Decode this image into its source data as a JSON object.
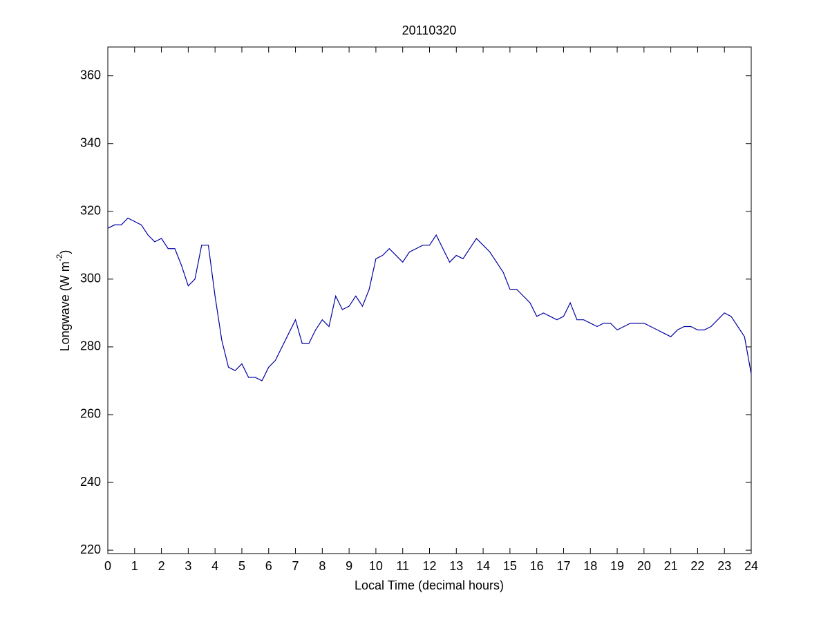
{
  "chart_data": {
    "type": "line",
    "title": "20110320",
    "x_label": "Local Time (decimal hours)",
    "y_label": {
      "text": "Longwave (W m",
      "superscript": "-2",
      "suffix": ")"
    },
    "x": [
      0,
      0.25,
      0.5,
      0.75,
      1,
      1.25,
      1.5,
      1.75,
      2,
      2.25,
      2.5,
      2.75,
      3,
      3.25,
      3.5,
      3.75,
      4,
      4.25,
      4.5,
      4.75,
      5,
      5.25,
      5.5,
      5.75,
      6,
      6.25,
      6.5,
      6.75,
      7,
      7.25,
      7.5,
      7.75,
      8,
      8.25,
      8.5,
      8.75,
      9,
      9.25,
      9.5,
      9.75,
      10,
      10.25,
      10.5,
      10.75,
      11,
      11.25,
      11.5,
      11.75,
      12,
      12.25,
      12.5,
      12.75,
      13,
      13.25,
      13.5,
      13.75,
      14,
      14.25,
      14.5,
      14.75,
      15,
      15.25,
      15.5,
      15.75,
      16,
      16.25,
      16.5,
      16.75,
      17,
      17.25,
      17.5,
      17.75,
      18,
      18.25,
      18.5,
      18.75,
      19,
      19.25,
      19.5,
      19.75,
      20,
      20.25,
      20.5,
      20.75,
      21,
      21.25,
      21.5,
      21.75,
      22,
      22.25,
      22.5,
      22.75,
      23,
      23.25,
      23.5,
      23.75,
      24
    ],
    "series": [
      {
        "name": "Longwave",
        "color": "#0000a0",
        "values": [
          315,
          316,
          316,
          318,
          317,
          316,
          313,
          311,
          312,
          309,
          309,
          304,
          298,
          300,
          310,
          310,
          295,
          282,
          274,
          273,
          275,
          271,
          271,
          270,
          274,
          276,
          280,
          284,
          288,
          281,
          281,
          285,
          288,
          286,
          295,
          291,
          292,
          295,
          292,
          297,
          306,
          307,
          309,
          307,
          305,
          308,
          309,
          310,
          310,
          313,
          309,
          305,
          307,
          306,
          309,
          312,
          310,
          308,
          305,
          302,
          297,
          297,
          295,
          293,
          289,
          290,
          289,
          288,
          289,
          293,
          288,
          288,
          287,
          286,
          287,
          287,
          285,
          286,
          287,
          287,
          287,
          286,
          285,
          284,
          283,
          285,
          286,
          286,
          285,
          285,
          286,
          288,
          290,
          289,
          286,
          283,
          272
        ]
      }
    ],
    "xlim": [
      0,
      24
    ],
    "ylim": [
      219,
      368.5
    ],
    "xticks": [
      0,
      1,
      2,
      3,
      4,
      5,
      6,
      7,
      8,
      9,
      10,
      11,
      12,
      13,
      14,
      15,
      16,
      17,
      18,
      19,
      20,
      21,
      22,
      23,
      24
    ],
    "yticks": [
      220,
      240,
      260,
      280,
      300,
      320,
      340,
      360
    ]
  }
}
